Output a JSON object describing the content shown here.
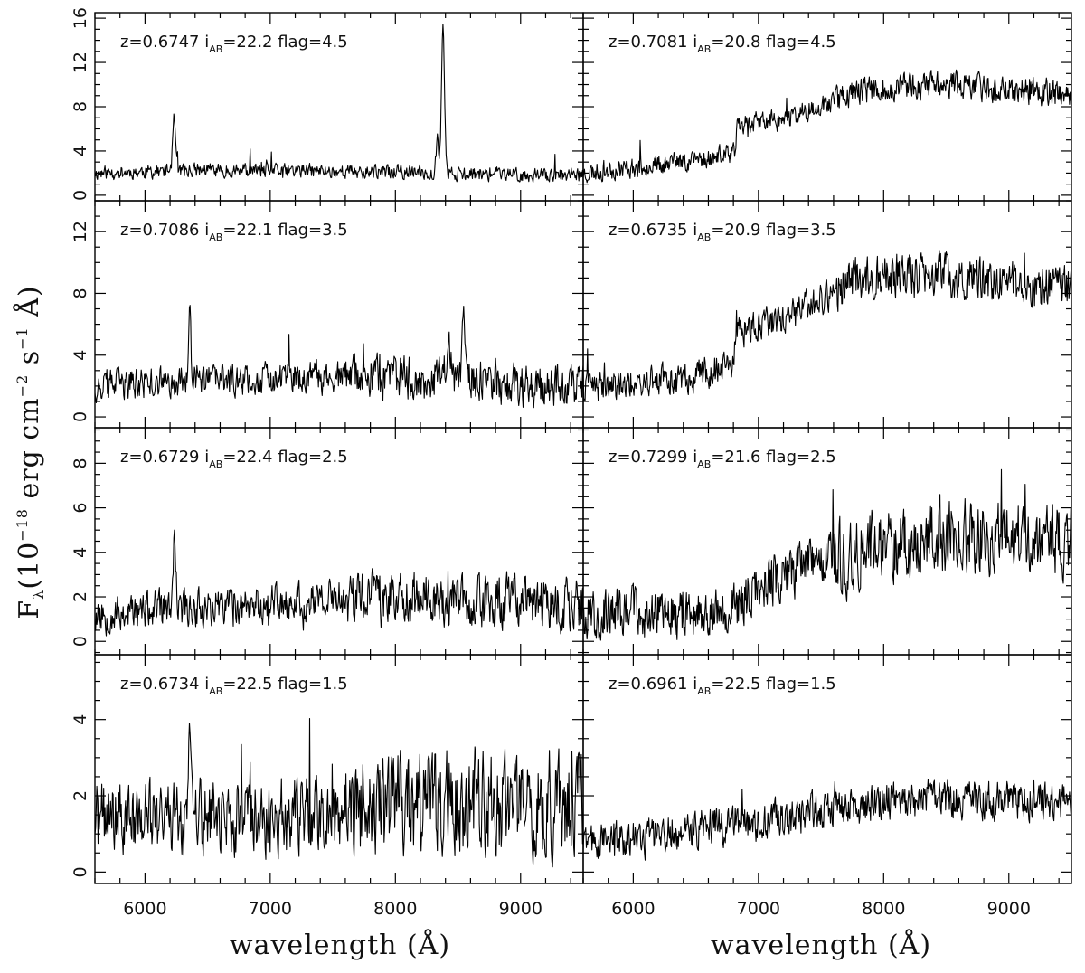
{
  "chart_data": {
    "type": "line",
    "xlabel": "wavelength (Å)",
    "ylabel": "F_λ(10^-18 erg cm^-2 s^-1 Å)",
    "ylabel_parts": {
      "f": "F",
      "lambda": "λ",
      "open": "(10",
      "exp1": "−18",
      "mid": " erg cm",
      "exp2": "−2",
      "s": " s",
      "exp3": "−1",
      "tail": " Å)"
    },
    "xlim": [
      5600,
      9500
    ],
    "xticks": [
      6000,
      7000,
      8000,
      9000
    ],
    "grid": false,
    "rows": [
      {
        "ylim": [
          -0.5,
          16.5
        ],
        "yticks": [
          0,
          4,
          8,
          12,
          16
        ]
      },
      {
        "ylim": [
          -0.7,
          14.0
        ],
        "yticks": [
          0,
          4,
          8,
          12
        ]
      },
      {
        "ylim": [
          -0.6,
          9.6
        ],
        "yticks": [
          0,
          2,
          4,
          6,
          8
        ]
      },
      {
        "ylim": [
          -0.3,
          5.7
        ],
        "yticks": [
          0,
          2,
          4
        ]
      }
    ],
    "panels": [
      {
        "z": "0.6747",
        "iab": "22.2",
        "flag": "4.5",
        "continuum": [
          [
            5600,
            2.0
          ],
          [
            6500,
            2.3
          ],
          [
            8000,
            2.1
          ],
          [
            9300,
            1.8
          ],
          [
            9500,
            1.8
          ]
        ],
        "noise": 0.55,
        "seed": 11,
        "lines": [
          [
            6232,
            5.2,
            12
          ],
          [
            8335,
            3.5,
            10
          ],
          [
            8380,
            13.0,
            12
          ]
        ],
        "break": null
      },
      {
        "z": "0.7081",
        "iab": "20.8",
        "flag": "4.5",
        "continuum": [
          [
            5600,
            2.0
          ],
          [
            6500,
            3.2
          ],
          [
            6820,
            3.8
          ],
          [
            6830,
            6.5
          ],
          [
            7200,
            6.8
          ],
          [
            7800,
            9.5
          ],
          [
            8500,
            10.0
          ],
          [
            9400,
            9.2
          ]
        ],
        "noise": 0.8,
        "seed": 23,
        "lines": [],
        "break": null
      },
      {
        "z": "0.7086",
        "iab": "22.1",
        "flag": "3.5",
        "continuum": [
          [
            5600,
            2.0
          ],
          [
            6500,
            2.4
          ],
          [
            8000,
            2.6
          ],
          [
            9300,
            2.0
          ]
        ],
        "noise": 0.9,
        "seed": 37,
        "lines": [
          [
            6355,
            4.6,
            10
          ],
          [
            8545,
            5.0,
            12
          ],
          [
            8420,
            1.5,
            30
          ]
        ],
        "break": null
      },
      {
        "z": "0.6735",
        "iab": "20.9",
        "flag": "3.5",
        "continuum": [
          [
            5600,
            1.8
          ],
          [
            6500,
            2.6
          ],
          [
            6800,
            3.5
          ],
          [
            6830,
            5.5
          ],
          [
            7200,
            6.2
          ],
          [
            7800,
            9.0
          ],
          [
            8500,
            9.2
          ],
          [
            9400,
            8.2
          ]
        ],
        "noise": 0.9,
        "seed": 41,
        "lines": [],
        "break": null
      },
      {
        "z": "0.6729",
        "iab": "22.4",
        "flag": "2.5",
        "continuum": [
          [
            5600,
            1.2
          ],
          [
            6300,
            1.5
          ],
          [
            8000,
            2.0
          ],
          [
            9400,
            1.6
          ]
        ],
        "noise": 0.75,
        "seed": 53,
        "lines": [
          [
            6235,
            2.8,
            10
          ]
        ],
        "break": null
      },
      {
        "z": "0.7299",
        "iab": "21.6",
        "flag": "2.5",
        "continuum": [
          [
            5600,
            1.2
          ],
          [
            6800,
            1.4
          ],
          [
            7000,
            2.5
          ],
          [
            7800,
            4.2
          ],
          [
            8500,
            4.8
          ],
          [
            9400,
            4.6
          ]
        ],
        "noise": 1.0,
        "seed": 67,
        "lines": [],
        "break": null
      },
      {
        "z": "0.6734",
        "iab": "22.5",
        "flag": "1.5",
        "continuum": [
          [
            5600,
            1.4
          ],
          [
            7500,
            1.5
          ],
          [
            8000,
            1.8
          ],
          [
            9300,
            1.8
          ]
        ],
        "noise": 0.85,
        "seed": 71,
        "lines": [
          [
            6355,
            1.8,
            10
          ]
        ],
        "break": null
      },
      {
        "z": "0.6961",
        "iab": "22.5",
        "flag": "1.5",
        "continuum": [
          [
            5600,
            0.8
          ],
          [
            7000,
            1.3
          ],
          [
            8000,
            1.9
          ],
          [
            9400,
            1.9
          ]
        ],
        "noise": 0.45,
        "seed": 89,
        "lines": [],
        "break": null
      }
    ]
  }
}
